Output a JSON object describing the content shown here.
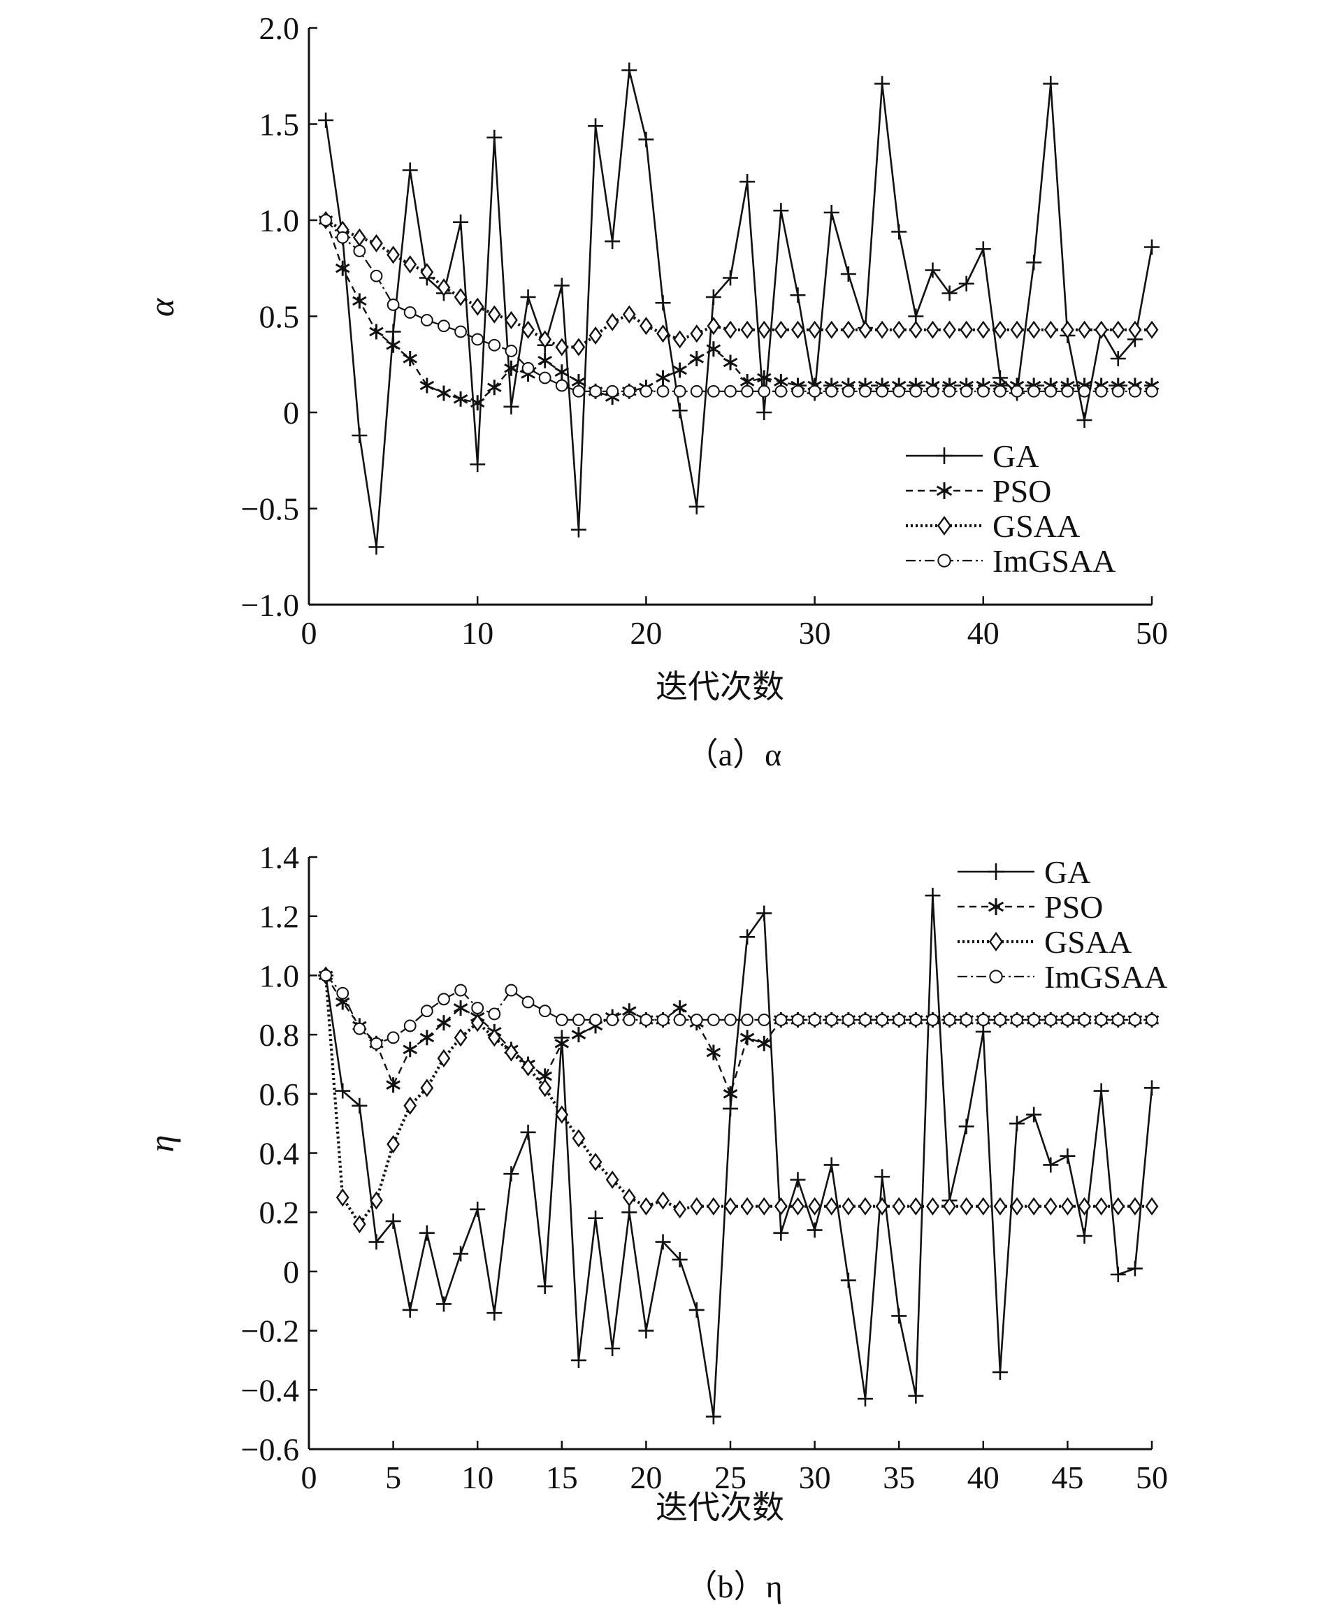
{
  "chart_data": [
    {
      "type": "line",
      "caption": "（a）α",
      "ylabel": "α",
      "xlabel": "迭代次数",
      "xlim": [
        0,
        50
      ],
      "ylim": [
        -1.0,
        2.0
      ],
      "xticks": [
        0,
        10,
        20,
        30,
        40,
        50
      ],
      "xtick_labels": [
        "0",
        "10",
        "20",
        "30",
        "40",
        "50"
      ],
      "yticks": [
        -1.0,
        -0.5,
        0,
        0.5,
        1.0,
        1.5,
        2.0
      ],
      "ytick_labels": [
        "−1.0",
        "−0.5",
        "0",
        "0.5",
        "1.0",
        "1.5",
        "2.0"
      ],
      "legend_position": "lower-right",
      "x": [
        1,
        2,
        3,
        4,
        5,
        6,
        7,
        8,
        9,
        10,
        11,
        12,
        13,
        14,
        15,
        16,
        17,
        18,
        19,
        20,
        21,
        22,
        23,
        24,
        25,
        26,
        27,
        28,
        29,
        30,
        31,
        32,
        33,
        34,
        35,
        36,
        37,
        38,
        39,
        40,
        41,
        42,
        43,
        44,
        45,
        46,
        47,
        48,
        49,
        50
      ],
      "series": [
        {
          "name": "GA",
          "style": "ga",
          "values": [
            1.52,
            0.91,
            -0.12,
            -0.7,
            0.42,
            1.26,
            0.7,
            0.62,
            0.99,
            -0.27,
            1.43,
            0.03,
            0.6,
            0.35,
            0.66,
            -0.61,
            1.49,
            0.89,
            1.78,
            1.42,
            0.57,
            0.01,
            -0.49,
            0.6,
            0.7,
            1.2,
            0.0,
            1.05,
            0.61,
            0.1,
            1.04,
            0.72,
            0.44,
            1.71,
            0.94,
            0.5,
            0.74,
            0.62,
            0.67,
            0.85,
            0.18,
            0.1,
            0.78,
            1.71,
            0.4,
            -0.04,
            0.43,
            0.28,
            0.38,
            0.86
          ]
        },
        {
          "name": "PSO",
          "style": "pso",
          "values": [
            1.0,
            0.75,
            0.58,
            0.42,
            0.35,
            0.28,
            0.14,
            0.1,
            0.07,
            0.05,
            0.13,
            0.23,
            0.2,
            0.27,
            0.21,
            0.16,
            0.11,
            0.08,
            0.11,
            0.13,
            0.18,
            0.22,
            0.28,
            0.33,
            0.26,
            0.16,
            0.18,
            0.16,
            0.14,
            0.14,
            0.14,
            0.14,
            0.14,
            0.14,
            0.14,
            0.14,
            0.14,
            0.14,
            0.14,
            0.14,
            0.14,
            0.14,
            0.14,
            0.14,
            0.14,
            0.14,
            0.14,
            0.14,
            0.14,
            0.14
          ]
        },
        {
          "name": "GSAA",
          "style": "gsaa",
          "values": [
            1.0,
            0.95,
            0.91,
            0.88,
            0.82,
            0.77,
            0.73,
            0.65,
            0.6,
            0.55,
            0.51,
            0.48,
            0.43,
            0.38,
            0.34,
            0.34,
            0.4,
            0.47,
            0.51,
            0.45,
            0.41,
            0.38,
            0.41,
            0.45,
            0.43,
            0.43,
            0.43,
            0.43,
            0.43,
            0.43,
            0.43,
            0.43,
            0.43,
            0.43,
            0.43,
            0.43,
            0.43,
            0.43,
            0.43,
            0.43,
            0.43,
            0.43,
            0.43,
            0.43,
            0.43,
            0.43,
            0.43,
            0.43,
            0.43,
            0.43
          ]
        },
        {
          "name": "ImGSAA",
          "style": "imgsaa",
          "values": [
            1.0,
            0.91,
            0.84,
            0.71,
            0.56,
            0.52,
            0.48,
            0.45,
            0.42,
            0.38,
            0.35,
            0.32,
            0.23,
            0.18,
            0.14,
            0.11,
            0.11,
            0.11,
            0.11,
            0.11,
            0.11,
            0.11,
            0.11,
            0.11,
            0.11,
            0.11,
            0.11,
            0.11,
            0.11,
            0.11,
            0.11,
            0.11,
            0.11,
            0.11,
            0.11,
            0.11,
            0.11,
            0.11,
            0.11,
            0.11,
            0.11,
            0.11,
            0.11,
            0.11,
            0.11,
            0.11,
            0.11,
            0.11,
            0.11,
            0.11
          ]
        }
      ]
    },
    {
      "type": "line",
      "caption": "（b）η",
      "ylabel": "η",
      "xlabel": "迭代次数",
      "xlim": [
        0,
        50
      ],
      "ylim": [
        -0.6,
        1.4
      ],
      "xticks": [
        0,
        5,
        10,
        15,
        20,
        25,
        30,
        35,
        40,
        45,
        50
      ],
      "xtick_labels": [
        "0",
        "5",
        "10",
        "15",
        "20",
        "25",
        "30",
        "35",
        "40",
        "45",
        "50"
      ],
      "yticks": [
        -0.6,
        -0.4,
        -0.2,
        0,
        0.2,
        0.4,
        0.6,
        0.8,
        1.0,
        1.2,
        1.4
      ],
      "ytick_labels": [
        "−0.6",
        "−0.4",
        "−0.2",
        "0",
        "0.2",
        "0.4",
        "0.6",
        "0.8",
        "1.0",
        "1.2",
        "1.4"
      ],
      "legend_position": "top-right",
      "x": [
        1,
        2,
        3,
        4,
        5,
        6,
        7,
        8,
        9,
        10,
        11,
        12,
        13,
        14,
        15,
        16,
        17,
        18,
        19,
        20,
        21,
        22,
        23,
        24,
        25,
        26,
        27,
        28,
        29,
        30,
        31,
        32,
        33,
        34,
        35,
        36,
        37,
        38,
        39,
        40,
        41,
        42,
        43,
        44,
        45,
        46,
        47,
        48,
        49,
        50
      ],
      "series": [
        {
          "name": "GA",
          "style": "ga",
          "values": [
            1.0,
            0.61,
            0.56,
            0.1,
            0.17,
            -0.13,
            0.13,
            -0.11,
            0.06,
            0.21,
            -0.14,
            0.33,
            0.47,
            -0.05,
            0.79,
            -0.3,
            0.18,
            -0.26,
            0.2,
            -0.2,
            0.1,
            0.04,
            -0.13,
            -0.49,
            0.55,
            1.13,
            1.21,
            0.13,
            0.31,
            0.14,
            0.36,
            -0.03,
            -0.43,
            0.32,
            -0.15,
            -0.42,
            1.27,
            0.24,
            0.49,
            0.81,
            -0.34,
            0.5,
            0.53,
            0.36,
            0.39,
            0.12,
            0.61,
            -0.01,
            0.01,
            0.62
          ]
        },
        {
          "name": "PSO",
          "style": "pso",
          "values": [
            1.0,
            0.91,
            0.83,
            0.77,
            0.63,
            0.75,
            0.79,
            0.84,
            0.89,
            0.86,
            0.81,
            0.75,
            0.7,
            0.66,
            0.77,
            0.8,
            0.83,
            0.86,
            0.88,
            0.85,
            0.85,
            0.89,
            0.84,
            0.74,
            0.6,
            0.79,
            0.77,
            0.85,
            0.85,
            0.85,
            0.85,
            0.85,
            0.85,
            0.85,
            0.85,
            0.85,
            0.85,
            0.85,
            0.85,
            0.85,
            0.85,
            0.85,
            0.85,
            0.85,
            0.85,
            0.85,
            0.85,
            0.85,
            0.85,
            0.85
          ]
        },
        {
          "name": "GSAA",
          "style": "gsaa",
          "values": [
            1.0,
            0.25,
            0.16,
            0.24,
            0.43,
            0.56,
            0.62,
            0.72,
            0.79,
            0.84,
            0.79,
            0.74,
            0.69,
            0.62,
            0.53,
            0.45,
            0.37,
            0.31,
            0.25,
            0.22,
            0.24,
            0.21,
            0.22,
            0.22,
            0.22,
            0.22,
            0.22,
            0.22,
            0.22,
            0.22,
            0.22,
            0.22,
            0.22,
            0.22,
            0.22,
            0.22,
            0.22,
            0.22,
            0.22,
            0.22,
            0.22,
            0.22,
            0.22,
            0.22,
            0.22,
            0.22,
            0.22,
            0.22,
            0.22,
            0.22
          ]
        },
        {
          "name": "ImGSAA",
          "style": "imgsaa",
          "values": [
            1.0,
            0.94,
            0.82,
            0.77,
            0.79,
            0.83,
            0.88,
            0.92,
            0.95,
            0.89,
            0.87,
            0.95,
            0.91,
            0.88,
            0.85,
            0.85,
            0.85,
            0.85,
            0.85,
            0.85,
            0.85,
            0.85,
            0.85,
            0.85,
            0.85,
            0.85,
            0.85,
            0.85,
            0.85,
            0.85,
            0.85,
            0.85,
            0.85,
            0.85,
            0.85,
            0.85,
            0.85,
            0.85,
            0.85,
            0.85,
            0.85,
            0.85,
            0.85,
            0.85,
            0.85,
            0.85,
            0.85,
            0.85,
            0.85,
            0.85
          ]
        }
      ]
    }
  ]
}
